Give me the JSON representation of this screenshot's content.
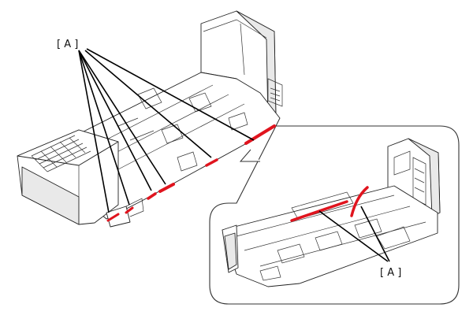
{
  "callouts": {
    "main_label": "[ A ]",
    "detail_label": "[ A ]"
  },
  "colors": {
    "highlight": "#e0141e",
    "line": "#222222",
    "shade": "#e9e9e9"
  }
}
